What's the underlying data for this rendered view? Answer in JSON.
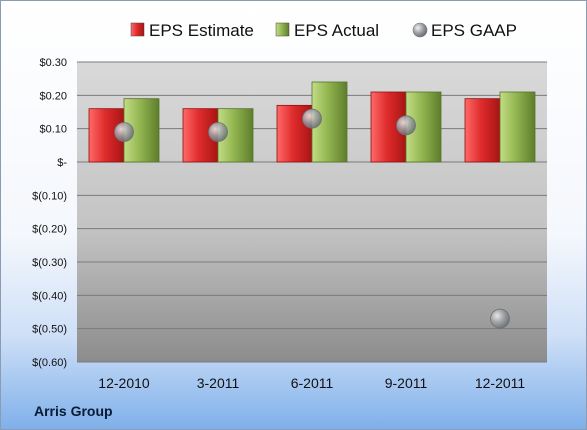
{
  "company": "Arris Group",
  "legend": [
    {
      "label": "EPS Estimate",
      "color": "#d42a2a",
      "marker": "square"
    },
    {
      "label": "EPS Actual",
      "color": "#8db04a",
      "marker": "square"
    },
    {
      "label": "EPS GAAP",
      "color": "#9a9ea6",
      "marker": "circle"
    }
  ],
  "chart_data": {
    "type": "bar",
    "categories": [
      "12-2010",
      "3-2011",
      "6-2011",
      "9-2011",
      "12-2011"
    ],
    "series": [
      {
        "name": "EPS Estimate",
        "kind": "bar",
        "color": "#d42a2a",
        "values": [
          0.16,
          0.16,
          0.17,
          0.21,
          0.19
        ]
      },
      {
        "name": "EPS Actual",
        "kind": "bar",
        "color": "#8db04a",
        "values": [
          0.19,
          0.16,
          0.24,
          0.21,
          0.21
        ]
      },
      {
        "name": "EPS GAAP",
        "kind": "scatter",
        "color": "#9a9ea6",
        "values": [
          0.09,
          0.09,
          0.13,
          0.11,
          -0.47
        ]
      }
    ],
    "ylim": [
      -0.6,
      0.3
    ],
    "yticks": [
      0.3,
      0.2,
      0.1,
      0.0,
      -0.1,
      -0.2,
      -0.3,
      -0.4,
      -0.5,
      -0.6
    ],
    "ytick_labels": [
      "$0.30",
      "$0.20",
      "$0.10",
      "$-",
      "$(0.10)",
      "$(0.20)",
      "$(0.30)",
      "$(0.40)",
      "$(0.50)",
      "$(0.60)"
    ],
    "grid": true,
    "legend_position": "top"
  }
}
